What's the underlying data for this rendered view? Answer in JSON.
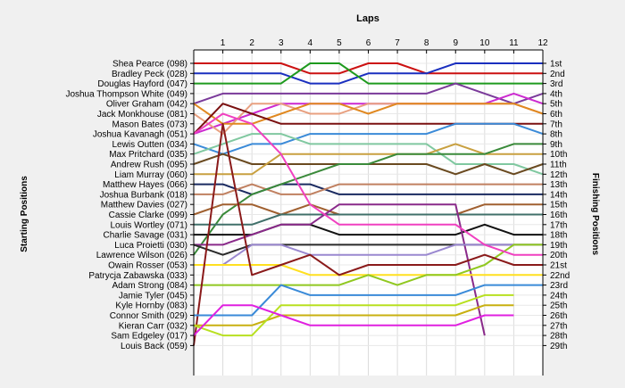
{
  "chart_data": {
    "type": "line",
    "title": "Laps",
    "xlabel": "Laps",
    "ylabel_left": "Starting Positions",
    "ylabel_right": "Finishing Positions",
    "x_ticks": [
      "1",
      "2",
      "3",
      "4",
      "5",
      "6",
      "7",
      "8",
      "9",
      "10",
      "11",
      "12"
    ],
    "xlim": [
      0,
      12
    ],
    "ylim": [
      1,
      29
    ],
    "grid": true,
    "finishing_positions": [
      "1st",
      "2nd",
      "3rd",
      "4th",
      "5th",
      "6th",
      "7th",
      "8th",
      "9th",
      "10th",
      "11th",
      "12th",
      "13th",
      "14th",
      "15th",
      "16th",
      "17th",
      "18th",
      "19th",
      "20th",
      "21st",
      "22nd",
      "23rd",
      "24th",
      "25th",
      "26th",
      "27th",
      "28th",
      "29th"
    ],
    "series": [
      {
        "name": "Shea Pearce (098)",
        "color": "#cc1111",
        "values": [
          1,
          1,
          1,
          1,
          2,
          2,
          1,
          1,
          2,
          2,
          2,
          2,
          2
        ]
      },
      {
        "name": "Bradley Peck (028)",
        "color": "#1a2fbf",
        "values": [
          2,
          2,
          2,
          2,
          3,
          3,
          2,
          2,
          2,
          1,
          1,
          1,
          1
        ]
      },
      {
        "name": "Douglas Hayford (047)",
        "color": "#1e9a1e",
        "values": [
          3,
          3,
          3,
          3,
          1,
          1,
          3,
          3,
          3,
          3,
          3,
          3,
          3
        ]
      },
      {
        "name": "Joshua Thompson White (049)",
        "color": "#7a3a9a",
        "values": [
          5,
          4,
          4,
          4,
          4,
          4,
          4,
          4,
          4,
          3,
          4,
          5,
          4
        ]
      },
      {
        "name": "Oliver Graham (042)",
        "color": "#cc2ad0",
        "values": [
          8,
          7,
          6,
          5,
          5,
          5,
          5,
          5,
          5,
          5,
          5,
          4,
          5
        ]
      },
      {
        "name": "Jack Monkhouse (081)",
        "color": "#e8a080",
        "values": [
          6,
          8,
          5,
          5,
          6,
          6,
          5,
          5,
          5,
          5,
          5,
          5,
          6
        ]
      },
      {
        "name": "Mason Bates (073)",
        "color": "#e08820",
        "values": [
          5,
          7,
          7,
          6,
          5,
          5,
          6,
          5,
          5,
          5,
          5,
          5,
          6
        ]
      },
      {
        "name": "Joshua Kavanagh (051)",
        "color": "#7a1010",
        "values": [
          8,
          5,
          6,
          7,
          7,
          7,
          7,
          7,
          7,
          7,
          7,
          7,
          7
        ]
      },
      {
        "name": "Lewis Outten (034)",
        "color": "#3a8ad8",
        "values": [
          9,
          10,
          9,
          9,
          8,
          8,
          8,
          8,
          8,
          7,
          7,
          7,
          8
        ]
      },
      {
        "name": "Max Pritchard (035)",
        "color": "#80c8a0",
        "values": [
          10,
          9,
          8,
          8,
          9,
          9,
          9,
          9,
          9,
          11,
          11,
          11,
          12
        ]
      },
      {
        "name": "Andrew Rush (095)",
        "color": "#6a4a20",
        "values": [
          11,
          10,
          11,
          11,
          11,
          11,
          11,
          11,
          11,
          12,
          11,
          12,
          11
        ]
      },
      {
        "name": "Liam Murray (060)",
        "color": "#c8a040",
        "values": [
          12,
          12,
          12,
          10,
          10,
          10,
          10,
          10,
          10,
          9,
          10,
          10,
          10
        ]
      },
      {
        "name": "Matthew Hayes (066)",
        "color": "#1a2a60",
        "values": [
          13,
          13,
          14,
          13,
          13,
          14,
          14,
          14,
          14,
          14,
          14,
          14,
          14
        ]
      },
      {
        "name": "Joshua Burbank (018)",
        "color": "#c08060",
        "values": [
          14,
          14,
          13,
          14,
          14,
          13,
          13,
          13,
          13,
          13,
          13,
          13,
          13
        ]
      },
      {
        "name": "Matthew Davies (027)",
        "color": "#3a8a3a",
        "values": [
          20,
          16,
          14,
          13,
          12,
          11,
          11,
          10,
          10,
          10,
          10,
          9,
          9
        ]
      },
      {
        "name": "Cassie Clarke (099)",
        "color": "#a06030",
        "values": [
          16,
          15,
          15,
          16,
          15,
          16,
          16,
          16,
          16,
          16,
          15,
          15,
          15
        ]
      },
      {
        "name": "Louis Wortley (071)",
        "color": "#40706a",
        "values": [
          17,
          17,
          17,
          16,
          16,
          16,
          16,
          16,
          16,
          16,
          16,
          16,
          16
        ]
      },
      {
        "name": "Charlie Savage (031)",
        "color": "#111111",
        "values": [
          18,
          18,
          18,
          17,
          17,
          18,
          18,
          18,
          18,
          18,
          17,
          18,
          18
        ]
      },
      {
        "name": "Luca Proietti (030)",
        "color": "#8a2a8a",
        "values": [
          19,
          19,
          18,
          17,
          17,
          15,
          15,
          15,
          15,
          15,
          28,
          0,
          0
        ]
      },
      {
        "name": "Lawrence Wilson (026)",
        "color": "#2a2a2a",
        "values": [
          19,
          20,
          19,
          19,
          19,
          19,
          19,
          19,
          19,
          19,
          19,
          19,
          19
        ]
      },
      {
        "name": "Owain Rosser (053)",
        "color": "#9a88d0",
        "values": [
          21,
          21,
          19,
          19,
          20,
          20,
          20,
          20,
          20,
          19,
          19,
          19,
          19
        ]
      },
      {
        "name": "Patrycja Zabawska (033)",
        "color": "#ffe020",
        "values": [
          21,
          21,
          21,
          21,
          22,
          22,
          22,
          22,
          22,
          22,
          22,
          22,
          22
        ]
      },
      {
        "name": "Adam Strong (084)",
        "color": "#90c820",
        "values": [
          23,
          23,
          23,
          23,
          23,
          23,
          22,
          23,
          22,
          22,
          21,
          19,
          19
        ]
      },
      {
        "name": "Jamie Tyler (045)",
        "color": "#f040c0",
        "values": [
          8,
          6,
          7,
          10,
          15,
          17,
          17,
          17,
          17,
          17,
          19,
          20,
          20
        ]
      },
      {
        "name": "Kyle Hornby (083)",
        "color": "#8a1a1a",
        "values": [
          29,
          7,
          22,
          21,
          20,
          22,
          21,
          21,
          21,
          21,
          20,
          21,
          21
        ]
      },
      {
        "name": "Connor Smith (029)",
        "color": "#3a8ad8",
        "values": [
          26,
          26,
          26,
          23,
          24,
          24,
          24,
          24,
          24,
          24,
          23,
          23,
          23
        ]
      },
      {
        "name": "Kieran Carr (032)",
        "color": "#c8b010",
        "values": [
          27,
          27,
          27,
          26,
          26,
          26,
          26,
          26,
          26,
          26,
          25,
          25,
          0
        ]
      },
      {
        "name": "Sam Edgeley (017)",
        "color": "#b8e020",
        "values": [
          27,
          28,
          28,
          25,
          25,
          25,
          25,
          25,
          25,
          25,
          24,
          24,
          0
        ]
      },
      {
        "name": "Louis Back (059)",
        "color": "#e020e0",
        "values": [
          28,
          25,
          25,
          26,
          27,
          27,
          27,
          27,
          27,
          27,
          26,
          26,
          0
        ]
      }
    ]
  }
}
